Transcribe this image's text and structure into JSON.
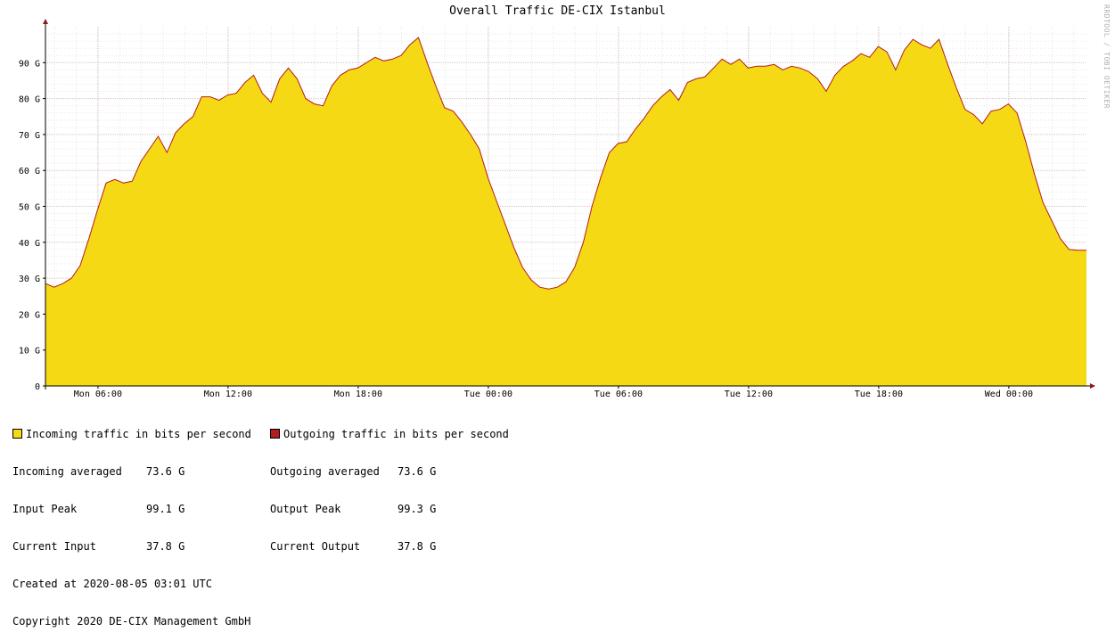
{
  "chart_data": {
    "type": "area",
    "title": "Overall Traffic DE-CIX Istanbul",
    "watermark": "RRDTOOL / TOBI OETIKER",
    "y_unit_suffix": "G",
    "ylim": [
      0,
      100
    ],
    "yticks": [
      0,
      10,
      20,
      30,
      40,
      50,
      60,
      70,
      80,
      90
    ],
    "ytick_labels": [
      "0",
      "10 G",
      "20 G",
      "30 G",
      "40 G",
      "50 G",
      "60 G",
      "70 G",
      "80 G",
      "90 G"
    ],
    "xlim_hours": [
      0,
      48
    ],
    "x_start": "Mon 03:35",
    "xticks_hours": [
      2.42,
      8.42,
      14.42,
      20.42,
      26.42,
      32.42,
      38.42,
      44.42
    ],
    "xtick_labels": [
      "Mon 06:00",
      "Mon 12:00",
      "Mon 18:00",
      "Tue 00:00",
      "Tue 06:00",
      "Tue 12:00",
      "Tue 18:00",
      "Wed 00:00"
    ],
    "grid": true,
    "colors": {
      "incoming_fill": "#f5d915",
      "outgoing_line": "#b21e1e",
      "grid_major": "#e0a0a0",
      "grid_minor": "#e6e6e6",
      "axis": "#000000",
      "arrow": "#8b1a1a"
    },
    "series": [
      {
        "name": "Incoming traffic in bits per second",
        "x_hours": [
          0,
          0.4,
          0.8,
          1.2,
          1.6,
          2.0,
          2.4,
          2.8,
          3.2,
          3.6,
          4.0,
          4.4,
          4.8,
          5.2,
          5.6,
          6.0,
          6.4,
          6.8,
          7.2,
          7.6,
          8.0,
          8.4,
          8.8,
          9.2,
          9.6,
          10.0,
          10.4,
          10.8,
          11.2,
          11.6,
          12.0,
          12.4,
          12.8,
          13.2,
          13.6,
          14.0,
          14.4,
          14.8,
          15.2,
          15.6,
          16.0,
          16.4,
          16.8,
          17.2,
          17.6,
          18.0,
          18.4,
          18.8,
          19.2,
          19.6,
          20.0,
          20.4,
          20.8,
          21.2,
          21.6,
          22.0,
          22.4,
          22.8,
          23.2,
          23.6,
          24.0,
          24.4,
          24.8,
          25.2,
          25.6,
          26.0,
          26.4,
          26.8,
          27.2,
          27.6,
          28.0,
          28.4,
          28.8,
          29.2,
          29.6,
          30.0,
          30.4,
          30.8,
          31.2,
          31.6,
          32.0,
          32.4,
          32.8,
          33.2,
          33.6,
          34.0,
          34.4,
          34.8,
          35.2,
          35.6,
          36.0,
          36.4,
          36.8,
          37.2,
          37.6,
          38.0,
          38.4,
          38.8,
          39.2,
          39.6,
          40.0,
          40.4,
          40.8,
          41.2,
          41.6,
          42.0,
          42.4,
          42.8,
          43.2,
          43.6,
          44.0,
          44.4,
          44.8,
          45.2,
          45.6,
          46.0,
          46.4,
          46.8,
          47.2,
          47.6,
          48.0
        ],
        "values": [
          28.5,
          27.5,
          28.5,
          30.0,
          33.5,
          41.0,
          49.0,
          56.5,
          57.5,
          56.5,
          57.0,
          62.5,
          66.0,
          69.5,
          65.0,
          70.5,
          73.0,
          75.0,
          80.5,
          80.5,
          79.5,
          81.0,
          81.5,
          84.5,
          86.5,
          81.5,
          79.0,
          85.5,
          88.5,
          85.5,
          80.0,
          78.5,
          78.0,
          83.5,
          86.5,
          88.0,
          88.5,
          90.0,
          91.5,
          90.5,
          91.0,
          92.0,
          95.0,
          97.0,
          90.0,
          83.5,
          77.5,
          76.5,
          73.5,
          70.0,
          66.0,
          58.0,
          51.5,
          45.0,
          38.5,
          33.0,
          29.5,
          27.5,
          27.0,
          27.5,
          29.0,
          33.0,
          40.0,
          50.0,
          58.0,
          65.0,
          67.5,
          68.0,
          71.5,
          74.5,
          78.0,
          80.5,
          82.5,
          79.5,
          84.5,
          85.5,
          86.0,
          88.5,
          91.0,
          89.5,
          91.0,
          88.5,
          89.0,
          89.0,
          89.5,
          88.0,
          89.0,
          88.5,
          87.5,
          85.5,
          82.0,
          86.5,
          89.0,
          90.5,
          92.5,
          91.5,
          94.5,
          93.0,
          88.0,
          93.5,
          96.5,
          95.0,
          94.0,
          96.5,
          89.5,
          83.0,
          77.0,
          75.5,
          73.0,
          76.5,
          77.0,
          78.5,
          76.0,
          68.0,
          59.0,
          51.0,
          46.0,
          41.0,
          38.0,
          37.8,
          37.8
        ]
      },
      {
        "name": "Outgoing traffic in bits per second",
        "same_as_incoming": true
      }
    ]
  },
  "legend": {
    "incoming": {
      "label": "Incoming traffic in bits per second",
      "averaged_label": "Incoming averaged",
      "averaged_value": "73.6 G",
      "peak_label": "Input Peak",
      "peak_value": "99.1 G",
      "current_label": "Current Input",
      "current_value": "37.8 G"
    },
    "outgoing": {
      "label": "Outgoing traffic in bits per second",
      "averaged_label": "Outgoing averaged",
      "averaged_value": "73.6 G",
      "peak_label": "Output Peak",
      "peak_value": "99.3 G",
      "current_label": "Current Output",
      "current_value": "37.8 G"
    },
    "created": "Created at 2020-08-05 03:01 UTC",
    "copyright": "Copyright 2020 DE-CIX Management GmbH"
  }
}
